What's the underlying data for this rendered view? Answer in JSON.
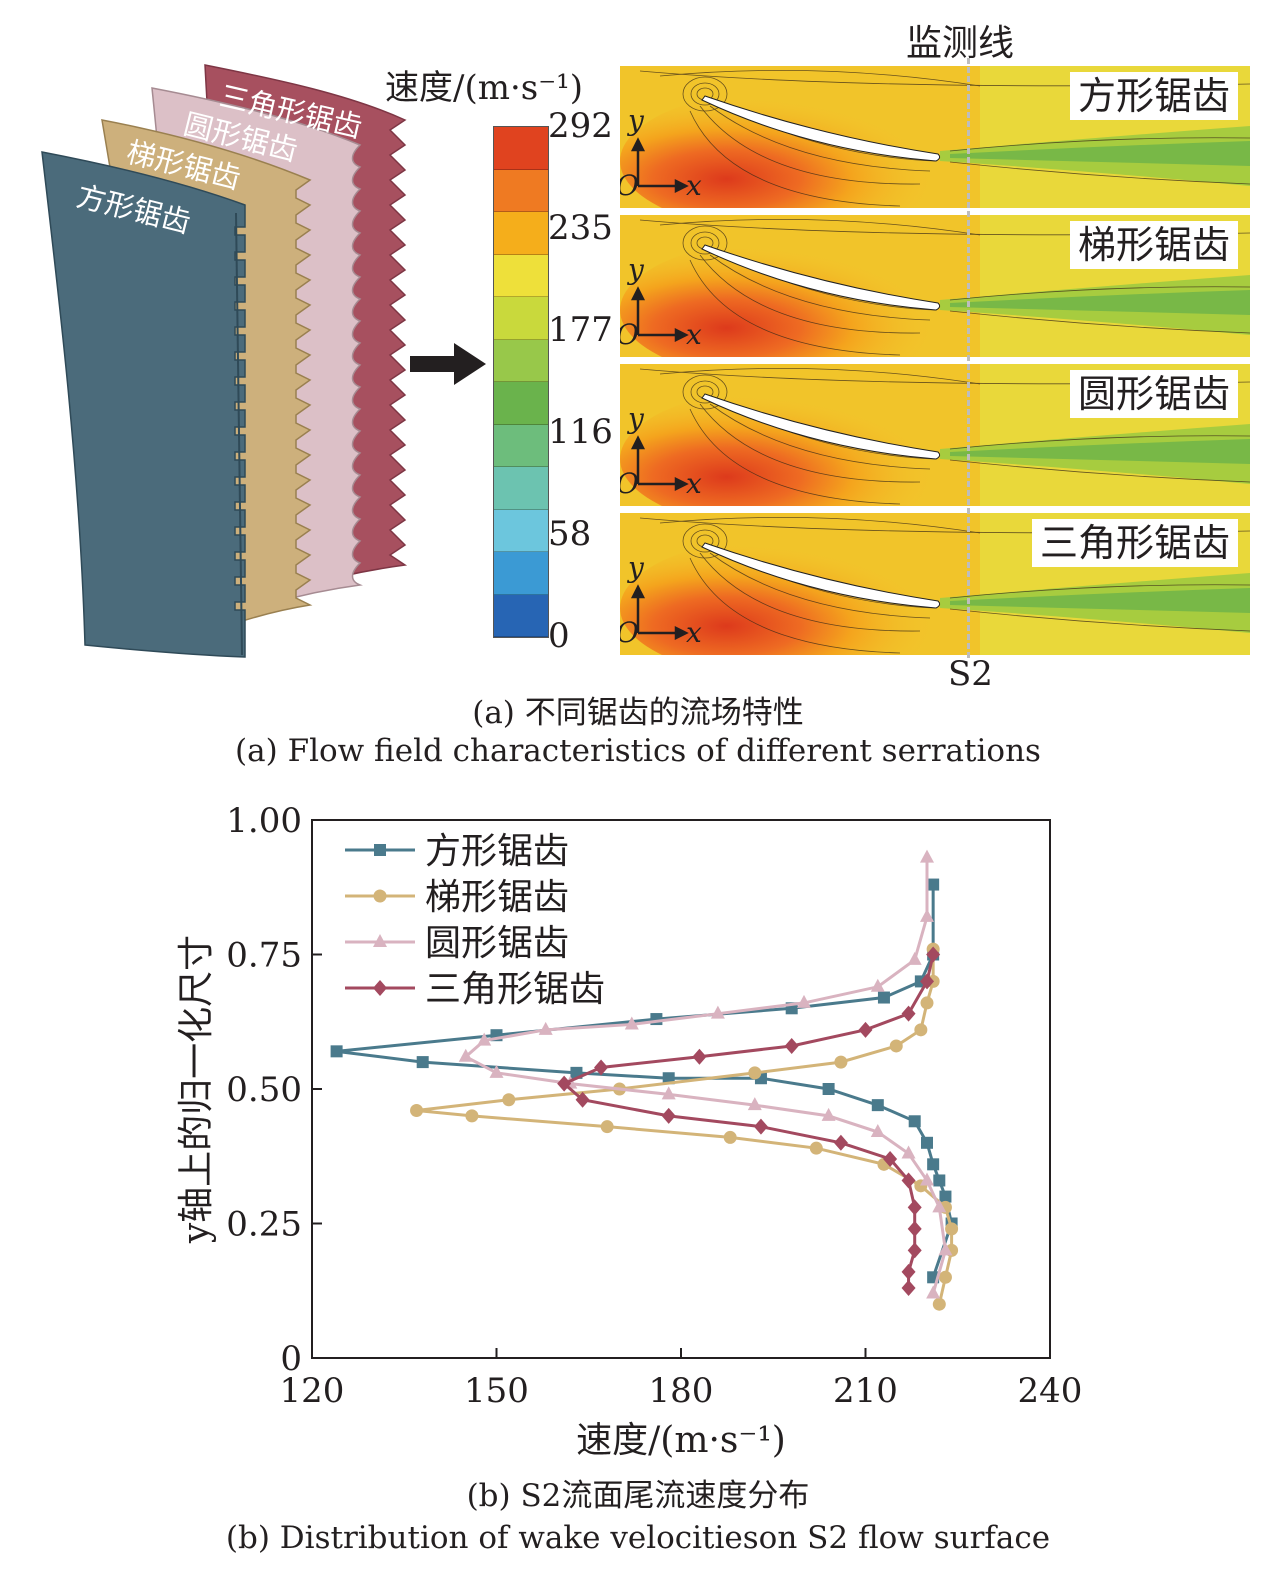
{
  "panel_a": {
    "blade_labels": [
      "三角形锯齿",
      "圆形锯齿",
      "梯形锯齿",
      "方形锯齿"
    ],
    "colorbar": {
      "title": "速度/(m·s⁻¹)",
      "ticks": [
        "292",
        "235",
        "177",
        "116",
        "58",
        "0"
      ],
      "colors": [
        "#e0431f",
        "#ef7a22",
        "#f5ae1b",
        "#eee03a",
        "#c9d93c",
        "#98c84a",
        "#6ab34c",
        "#6dbd7c",
        "#6cc3b0",
        "#6cc6dd",
        "#3b9ad4",
        "#2765b4"
      ]
    },
    "flow_panels": [
      "方形锯齿",
      "梯形锯齿",
      "圆形锯齿",
      "三角形锯齿"
    ],
    "monitor_line_label": "监测线",
    "surface_label": "S2",
    "axis_o": "O",
    "axis_x": "x",
    "axis_y": "y",
    "caption_cn": "(a) 不同锯齿的流场特性",
    "caption_en": "(a) Flow field characteristics of different serrations"
  },
  "panel_b": {
    "caption_cn": "(b) S2流面尾流速度分布",
    "caption_en": "(b) Distribution of wake velocitieson  S2 flow surface"
  },
  "chart_data": {
    "type": "line",
    "xlabel": "速度/(m·s⁻¹)",
    "ylabel": "y轴上的归一化尺寸",
    "xlim": [
      120,
      240
    ],
    "ylim": [
      0,
      1.0
    ],
    "xticks": [
      "120",
      "150",
      "180",
      "210",
      "240"
    ],
    "yticks": [
      "0",
      "0.25",
      "0.50",
      "0.75",
      "1.00"
    ],
    "legend_position": "top-left",
    "series": [
      {
        "name": "方形锯齿",
        "color": "#4a7a8c",
        "marker": "square",
        "x": [
          221,
          224,
          223,
          222,
          221,
          220,
          218,
          212,
          204,
          193,
          178,
          163,
          138,
          124,
          150,
          176,
          198,
          213,
          219,
          221,
          221
        ],
        "y": [
          0.15,
          0.25,
          0.3,
          0.33,
          0.36,
          0.4,
          0.44,
          0.47,
          0.5,
          0.52,
          0.52,
          0.53,
          0.55,
          0.57,
          0.6,
          0.63,
          0.65,
          0.67,
          0.7,
          0.75,
          0.88
        ]
      },
      {
        "name": "梯形锯齿",
        "color": "#d3b478",
        "marker": "circle",
        "x": [
          222,
          223,
          224,
          224,
          223,
          219,
          213,
          202,
          188,
          168,
          146,
          137,
          152,
          170,
          192,
          206,
          215,
          219,
          220,
          221,
          221
        ],
        "y": [
          0.1,
          0.15,
          0.2,
          0.24,
          0.28,
          0.32,
          0.36,
          0.39,
          0.41,
          0.43,
          0.45,
          0.46,
          0.48,
          0.5,
          0.53,
          0.55,
          0.58,
          0.61,
          0.66,
          0.7,
          0.76
        ]
      },
      {
        "name": "圆形锯齿",
        "color": "#d9b3c0",
        "marker": "triangle",
        "x": [
          221,
          223,
          222,
          220,
          217,
          212,
          204,
          192,
          178,
          162,
          150,
          145,
          148,
          158,
          172,
          186,
          200,
          212,
          218,
          220,
          220
        ],
        "y": [
          0.12,
          0.2,
          0.28,
          0.33,
          0.38,
          0.42,
          0.45,
          0.47,
          0.49,
          0.51,
          0.53,
          0.56,
          0.59,
          0.61,
          0.62,
          0.64,
          0.66,
          0.69,
          0.74,
          0.82,
          0.93
        ]
      },
      {
        "name": "三角形锯齿",
        "color": "#a3495f",
        "marker": "diamond",
        "x": [
          217,
          217,
          218,
          218,
          218,
          217,
          214,
          206,
          193,
          178,
          164,
          161,
          167,
          183,
          198,
          210,
          217,
          220,
          221
        ],
        "y": [
          0.13,
          0.16,
          0.2,
          0.24,
          0.28,
          0.33,
          0.37,
          0.4,
          0.43,
          0.45,
          0.48,
          0.51,
          0.54,
          0.56,
          0.58,
          0.61,
          0.64,
          0.7,
          0.75
        ]
      }
    ]
  }
}
